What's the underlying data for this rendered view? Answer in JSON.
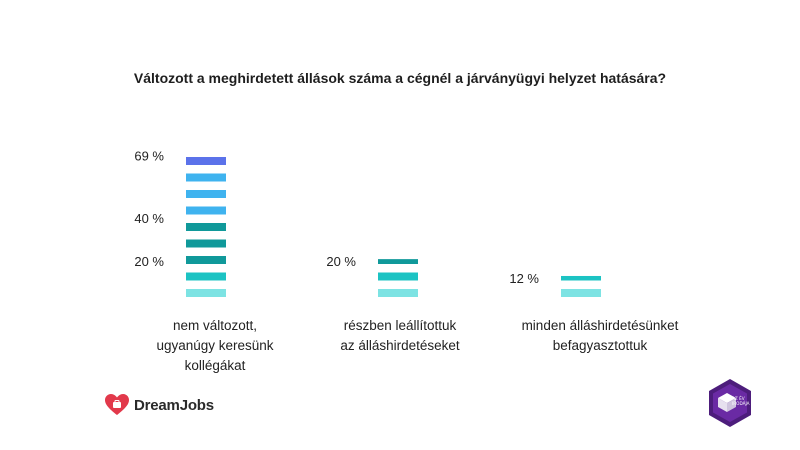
{
  "chart_data": {
    "type": "bar",
    "title": "Változott a meghirdetett állások száma a cégnél a járványügyi helyzet hatására?",
    "categories": [
      [
        "nem változott,",
        "ugyanúgy keresünk",
        "kollégákat"
      ],
      [
        "részben leállítottuk",
        "az álláshirdetéseket"
      ],
      [
        "minden álláshirdetésünket",
        "befagyasztottuk"
      ]
    ],
    "values": [
      69,
      20,
      12
    ],
    "value_labels": [
      "69 %",
      "20 %",
      "12 %"
    ],
    "axis_labels": [
      {
        "text": "69 %",
        "value": 69
      },
      {
        "text": "40 %",
        "value": 40
      },
      {
        "text": "20 %",
        "value": 20
      }
    ],
    "ylim": [
      0,
      69
    ],
    "grid": false,
    "legend": "none",
    "segment_colors": [
      "#7de3e3",
      "#1cc3c3",
      "#10999a",
      "#10999a",
      "#10999a",
      "#3fb3ef",
      "#3fb3ef",
      "#3fb3ef",
      "#5b72ea"
    ]
  },
  "logo": {
    "brand": "DreamJobs"
  },
  "badge": {
    "text": "AZ ÉV IRODÁJA"
  }
}
